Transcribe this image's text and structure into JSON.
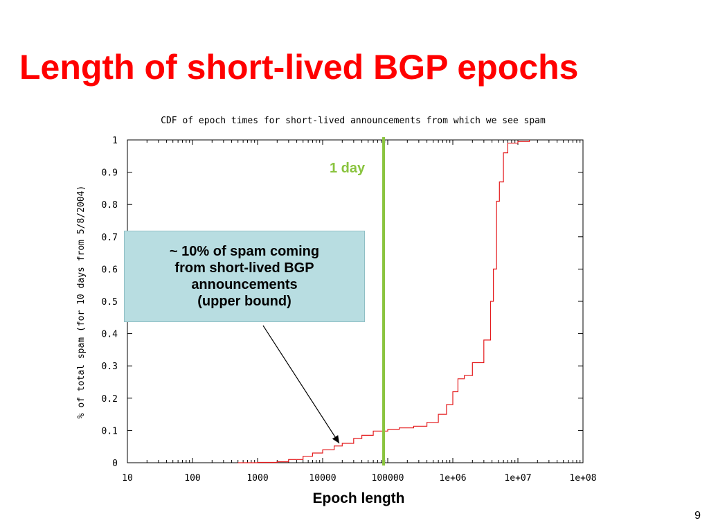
{
  "slide": {
    "title": "Length of short-lived BGP epochs",
    "page_number": "9"
  },
  "chart_data": {
    "type": "line",
    "title": "CDF of epoch times for short-lived announcements from which we see spam",
    "xlabel": "Epoch length",
    "ylabel": "% of total spam (for 10 days from 5/8/2004)",
    "xscale": "log",
    "xlim": [
      10,
      100000000
    ],
    "ylim": [
      0,
      1
    ],
    "x_ticks": [
      10,
      100,
      1000,
      10000,
      100000,
      1000000,
      10000000,
      100000000
    ],
    "x_tick_labels": [
      "10",
      "100",
      "1000",
      "10000",
      "100000",
      "1e+06",
      "1e+07",
      "1e+08"
    ],
    "y_ticks": [
      0,
      0.1,
      0.2,
      0.3,
      0.4,
      0.5,
      0.6,
      0.7,
      0.8,
      0.9,
      1
    ],
    "y_tick_labels": [
      "0",
      "0.1",
      "0.2",
      "0.3",
      "0.4",
      "0.5",
      "0.6",
      "0.7",
      "0.8",
      "0.9",
      "1"
    ],
    "series": [
      {
        "color": "#e41a1c",
        "x": [
          500,
          1000,
          2000,
          3000,
          5000,
          7000,
          10000,
          15000,
          20000,
          30000,
          40000,
          60000,
          100000,
          150000,
          250000,
          400000,
          600000,
          800000,
          1000000,
          1200000,
          1500000,
          2000000,
          3000000,
          3800000,
          4200000,
          4700000,
          5200000,
          6000000,
          7000000,
          10000000,
          15000000
        ],
        "y": [
          0,
          0.001,
          0.003,
          0.01,
          0.02,
          0.03,
          0.04,
          0.052,
          0.06,
          0.075,
          0.085,
          0.098,
          0.103,
          0.108,
          0.113,
          0.125,
          0.15,
          0.18,
          0.22,
          0.26,
          0.27,
          0.31,
          0.38,
          0.5,
          0.6,
          0.81,
          0.87,
          0.96,
          0.99,
          0.995,
          1
        ]
      }
    ],
    "grid": false,
    "marker": {
      "x": 86400,
      "label": "1 day",
      "color": "#8ac43f"
    },
    "annotation": {
      "lines": [
        "~ 10% of spam coming",
        "from short-lived BGP",
        "announcements",
        "(upper bound)"
      ],
      "box_color": "#b8dde1",
      "arrow_target": {
        "x": 18000,
        "y": 0.06
      }
    }
  }
}
